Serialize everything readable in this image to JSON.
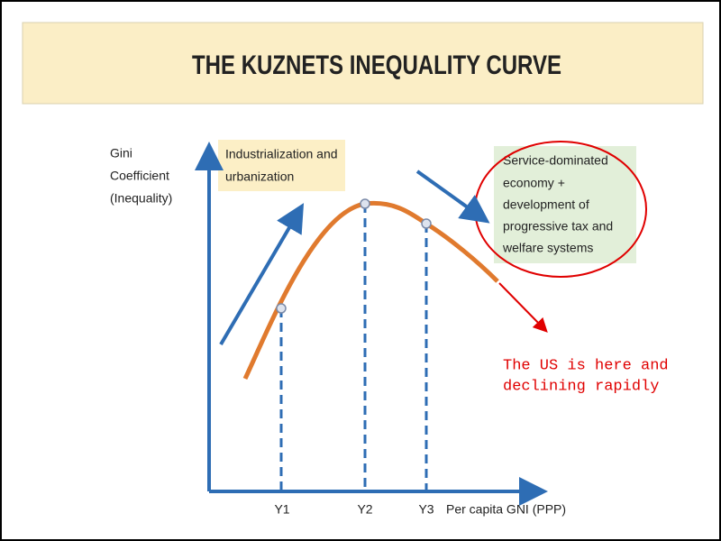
{
  "header": {
    "title": "THE KUZNETS INEQUALITY CURVE"
  },
  "y_axis": {
    "label": [
      "Gini",
      "Coefficient",
      "(Inequality)"
    ]
  },
  "x_axis": {
    "ticks": [
      "Y1",
      "Y2",
      "Y3"
    ],
    "label": "Per capita GNI (PPP)"
  },
  "annotations": {
    "industrialization": [
      "Industrialization and",
      "urbanization"
    ],
    "service": [
      "Service-dominated",
      "economy +",
      "development of",
      "progressive tax and",
      "welfare systems"
    ],
    "us_note": [
      "The US is here and",
      "declining rapidly"
    ]
  }
}
